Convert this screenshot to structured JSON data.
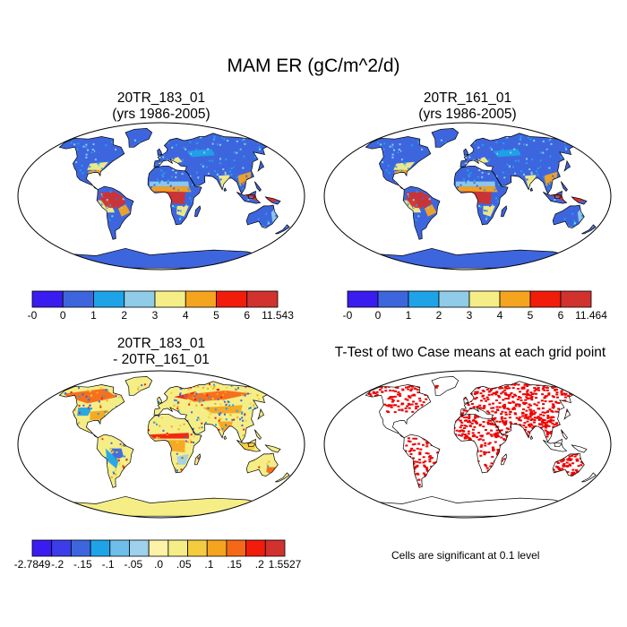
{
  "title": "MAM ER (gC/m^2/d)",
  "panels": [
    {
      "title_line1": "20TR_183_01",
      "title_line2": "(yrs 1986-2005)"
    },
    {
      "title_line1": "20TR_161_01",
      "title_line2": "(yrs 1986-2005)"
    },
    {
      "title_line1": "20TR_183_01",
      "title_line2": "- 20TR_161_01"
    },
    {
      "title_line1": "T-Test of two Case means at each grid point",
      "title_line2": ""
    }
  ],
  "colorbars": {
    "abs_colors": [
      "#3b1cf0",
      "#3d66de",
      "#1fa3e8",
      "#90cbe8",
      "#f5ee86",
      "#f5a420",
      "#f21c0b",
      "#d1322e"
    ],
    "abs_left_labels": [
      "-0",
      "0",
      "1",
      "2",
      "3",
      "4",
      "5",
      "6",
      "11.543"
    ],
    "abs_right_labels": [
      "-0",
      "0",
      "1",
      "2",
      "3",
      "4",
      "5",
      "6",
      "11.464"
    ],
    "diff_colors": [
      "#3b1cf0",
      "#3d3cea",
      "#3d66de",
      "#1fa3e8",
      "#6fbde9",
      "#9fd0ec",
      "#fdf2a8",
      "#f5ee86",
      "#f5cc40",
      "#f5a420",
      "#f56818",
      "#f21c0b",
      "#d1322e"
    ],
    "diff_labels": [
      "-2.7849",
      "-.2",
      "-.15",
      "-.1",
      "-.05",
      ".0",
      ".05",
      ".1",
      ".15",
      ".2",
      "1.5527"
    ]
  },
  "note": "Cells are significant at 0.1 level",
  "map_colors": {
    "ocean": "#ffffff",
    "land_base_abs": "#3d66de",
    "antarctica_abs": "#3d66de",
    "land_base_diff": "#f5ee86",
    "signif": "#ee0000"
  }
}
